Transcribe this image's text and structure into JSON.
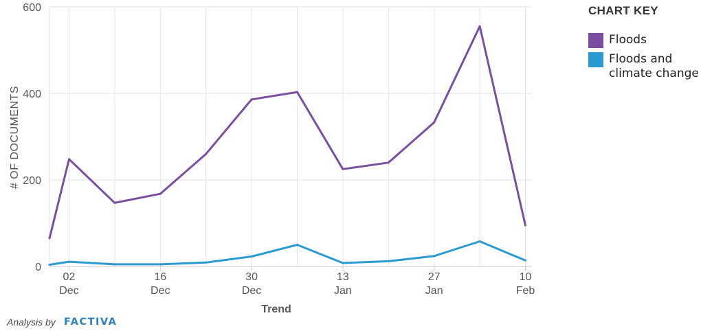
{
  "chart_data": {
    "type": "line",
    "x_ticks": [
      {
        "day": "02",
        "month": "Dec"
      },
      {
        "day": "16",
        "month": "Dec"
      },
      {
        "day": "30",
        "month": "Dec"
      },
      {
        "day": "13",
        "month": "Jan"
      },
      {
        "day": "27",
        "month": "Jan"
      },
      {
        "day": "10",
        "month": "Feb"
      }
    ],
    "x": [
      "2019-11-29",
      "2019-12-02",
      "2019-12-09",
      "2019-12-16",
      "2019-12-23",
      "2019-12-30",
      "2020-01-06",
      "2020-01-13",
      "2020-01-20",
      "2020-01-27",
      "2020-02-03",
      "2020-02-10"
    ],
    "series": [
      {
        "name": "Floods",
        "color": "#7b4fa0",
        "values": [
          65,
          248,
          147,
          168,
          260,
          386,
          403,
          225,
          240,
          333,
          555,
          95
        ]
      },
      {
        "name": "Floods and climate change",
        "color": "#2b9ad1",
        "values": [
          4,
          11,
          5,
          5,
          9,
          23,
          50,
          8,
          12,
          24,
          58,
          14
        ]
      }
    ],
    "y_ticks": [
      "0",
      "200",
      "400",
      "600"
    ],
    "ylim": [
      0,
      600
    ],
    "xlabel": "Trend",
    "ylabel": "# OF DOCUMENTS",
    "grid": true,
    "legend_position": "right"
  },
  "legend": {
    "title": "CHART KEY",
    "items": [
      {
        "label": "Floods",
        "color": "#7b4fa0"
      },
      {
        "label": "Floods and climate change",
        "color": "#2b9ad1"
      }
    ]
  },
  "footer": {
    "credit": "Analysis by",
    "brand": "FACTIVA"
  }
}
